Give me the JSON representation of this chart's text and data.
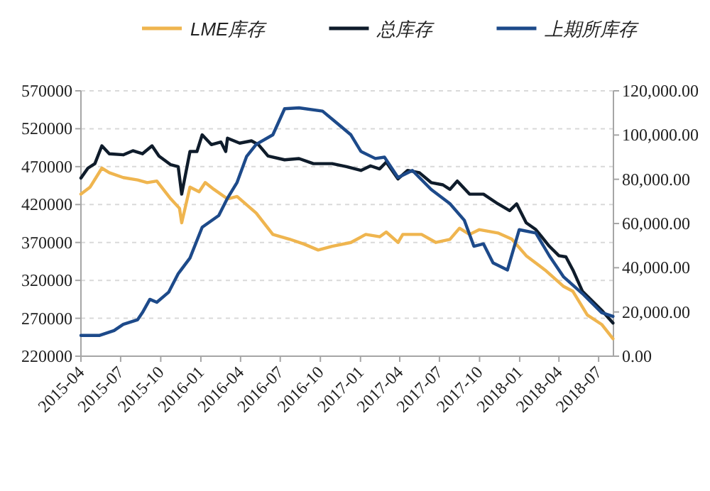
{
  "chart_data": {
    "type": "line",
    "legend": "top",
    "grid": "y",
    "marker": "none",
    "line_style": "solid",
    "xlim": [
      "2015-04",
      "2018-08-04"
    ],
    "xticks": [
      "2015-04",
      "2015-07",
      "2015-10",
      "2016-01",
      "2016-04",
      "2016-07",
      "2016-10",
      "2017-01",
      "2017-04",
      "2017-07",
      "2017-10",
      "2018-01",
      "2018-04",
      "2018-07"
    ],
    "ylim": [
      220000,
      570000
    ],
    "yticks": [
      220000,
      270000,
      320000,
      370000,
      420000,
      470000,
      520000,
      570000
    ],
    "y2lim": [
      0,
      120000
    ],
    "y2ticks": [
      {
        "value": 0,
        "label": "0.00"
      },
      {
        "value": 20000,
        "label": "20,000.00"
      },
      {
        "value": 40000,
        "label": "40,000.00"
      },
      {
        "value": 60000,
        "label": "60,000.00"
      },
      {
        "value": 80000,
        "label": "80,000.00"
      },
      {
        "value": 100000,
        "label": "100,000.00"
      },
      {
        "value": 120000,
        "label": "120,000.00"
      }
    ],
    "series": [
      {
        "name": "LME库存",
        "color": "#efb54f",
        "x": [
          "2015-04-01",
          "2015-04-22",
          "2015-05-19",
          "2015-06-05",
          "2015-07-07",
          "2015-08-09",
          "2015-08-31",
          "2015-09-22",
          "2015-10-24",
          "2015-11-13",
          "2015-11-18",
          "2015-12-07",
          "2015-12-28",
          "2016-01-11",
          "2016-01-31",
          "2016-03-02",
          "2016-03-24",
          "2016-05-07",
          "2016-06-14",
          "2016-07-22",
          "2016-08-24",
          "2016-09-26",
          "2016-10-28",
          "2016-12-10",
          "2017-01-13",
          "2017-02-14",
          "2017-03-01",
          "2017-03-28",
          "2017-04-08",
          "2017-05-21",
          "2017-06-23",
          "2017-07-25",
          "2017-08-16",
          "2017-09-08",
          "2017-09-30",
          "2017-11-12",
          "2017-12-14",
          "2018-01-16",
          "2018-02-28",
          "2018-04-12",
          "2018-05-03",
          "2018-06-05",
          "2018-07-08",
          "2018-08-03"
        ],
        "values": [
          433750,
          443000,
          468000,
          462000,
          455600,
          452500,
          449000,
          451000,
          427500,
          415000,
          396000,
          443000,
          436900,
          449000,
          440000,
          427500,
          430600,
          408750,
          380600,
          374400,
          368000,
          360000,
          365000,
          370000,
          380600,
          377500,
          383750,
          370000,
          380600,
          380600,
          370000,
          374000,
          388750,
          380600,
          386900,
          382500,
          374400,
          352500,
          333750,
          311900,
          305600,
          274400,
          261900,
          243100
        ]
      },
      {
        "name": "总库存",
        "color": "#0f1c2b",
        "x": [
          "2015-04-01",
          "2015-04-17",
          "2015-05-03",
          "2015-05-19",
          "2015-06-05",
          "2015-07-07",
          "2015-07-29",
          "2015-08-20",
          "2015-09-11",
          "2015-09-27",
          "2015-10-24",
          "2015-11-10",
          "2015-11-18",
          "2015-12-07",
          "2015-12-23",
          "2016-01-04",
          "2016-01-25",
          "2016-02-16",
          "2016-02-27",
          "2016-03-02",
          "2016-03-30",
          "2016-04-26",
          "2016-05-12",
          "2016-06-03",
          "2016-07-11",
          "2016-08-13",
          "2016-09-15",
          "2016-10-28",
          "2016-11-30",
          "2017-01-02",
          "2017-01-24",
          "2017-02-14",
          "2017-03-01",
          "2017-03-28",
          "2017-04-19",
          "2017-05-16",
          "2017-06-12",
          "2017-07-09",
          "2017-07-25",
          "2017-08-11",
          "2017-09-08",
          "2017-10-10",
          "2017-11-12",
          "2017-12-09",
          "2017-12-25",
          "2018-01-16",
          "2018-02-07",
          "2018-03-10",
          "2018-04-01",
          "2018-04-17",
          "2018-05-03",
          "2018-05-25",
          "2018-07-08",
          "2018-08-03"
        ],
        "values": [
          455000,
          468000,
          474000,
          497500,
          487000,
          485600,
          491000,
          487000,
          497500,
          484000,
          472500,
          470000,
          433750,
          490000,
          490000,
          512000,
          499000,
          502500,
          490000,
          507500,
          501000,
          504000,
          499000,
          484000,
          479000,
          480600,
          474000,
          474000,
          470000,
          465000,
          471000,
          467000,
          476000,
          453750,
          465000,
          462000,
          449000,
          446000,
          440000,
          451000,
          433750,
          433750,
          421000,
          412000,
          421000,
          396000,
          387000,
          365000,
          352500,
          351000,
          333750,
          305600,
          280600,
          263750
        ]
      },
      {
        "name": "上期所库存",
        "color": "#1d4a8a",
        "axis": "y2",
        "x": [
          "2015-04-01",
          "2015-05-14",
          "2015-06-16",
          "2015-07-07",
          "2015-08-09",
          "2015-08-20",
          "2015-09-06",
          "2015-09-22",
          "2015-10-19",
          "2015-11-10",
          "2015-12-07",
          "2016-01-04",
          "2016-02-11",
          "2016-03-01",
          "2016-03-24",
          "2016-04-15",
          "2016-05-07",
          "2016-06-14",
          "2016-07-11",
          "2016-08-13",
          "2016-10-06",
          "2016-11-08",
          "2016-12-10",
          "2017-01-02",
          "2017-02-04",
          "2017-02-25",
          "2017-03-28",
          "2017-04-30",
          "2017-06-12",
          "2017-07-25",
          "2017-08-27",
          "2017-09-18",
          "2017-10-10",
          "2017-11-01",
          "2017-12-04",
          "2017-12-31",
          "2018-02-07",
          "2018-03-10",
          "2018-04-12",
          "2018-05-25",
          "2018-07-08",
          "2018-08-03"
        ],
        "values": [
          9400,
          9400,
          11600,
          14400,
          16500,
          19700,
          25700,
          24400,
          28900,
          37300,
          44400,
          58300,
          63600,
          71100,
          78600,
          90400,
          95800,
          100100,
          111900,
          112300,
          110800,
          105400,
          100100,
          92600,
          89400,
          90000,
          80800,
          84000,
          75400,
          69000,
          61500,
          49700,
          50800,
          42200,
          39000,
          57200,
          55700,
          45400,
          35800,
          28300,
          19700,
          18000
        ]
      }
    ]
  }
}
